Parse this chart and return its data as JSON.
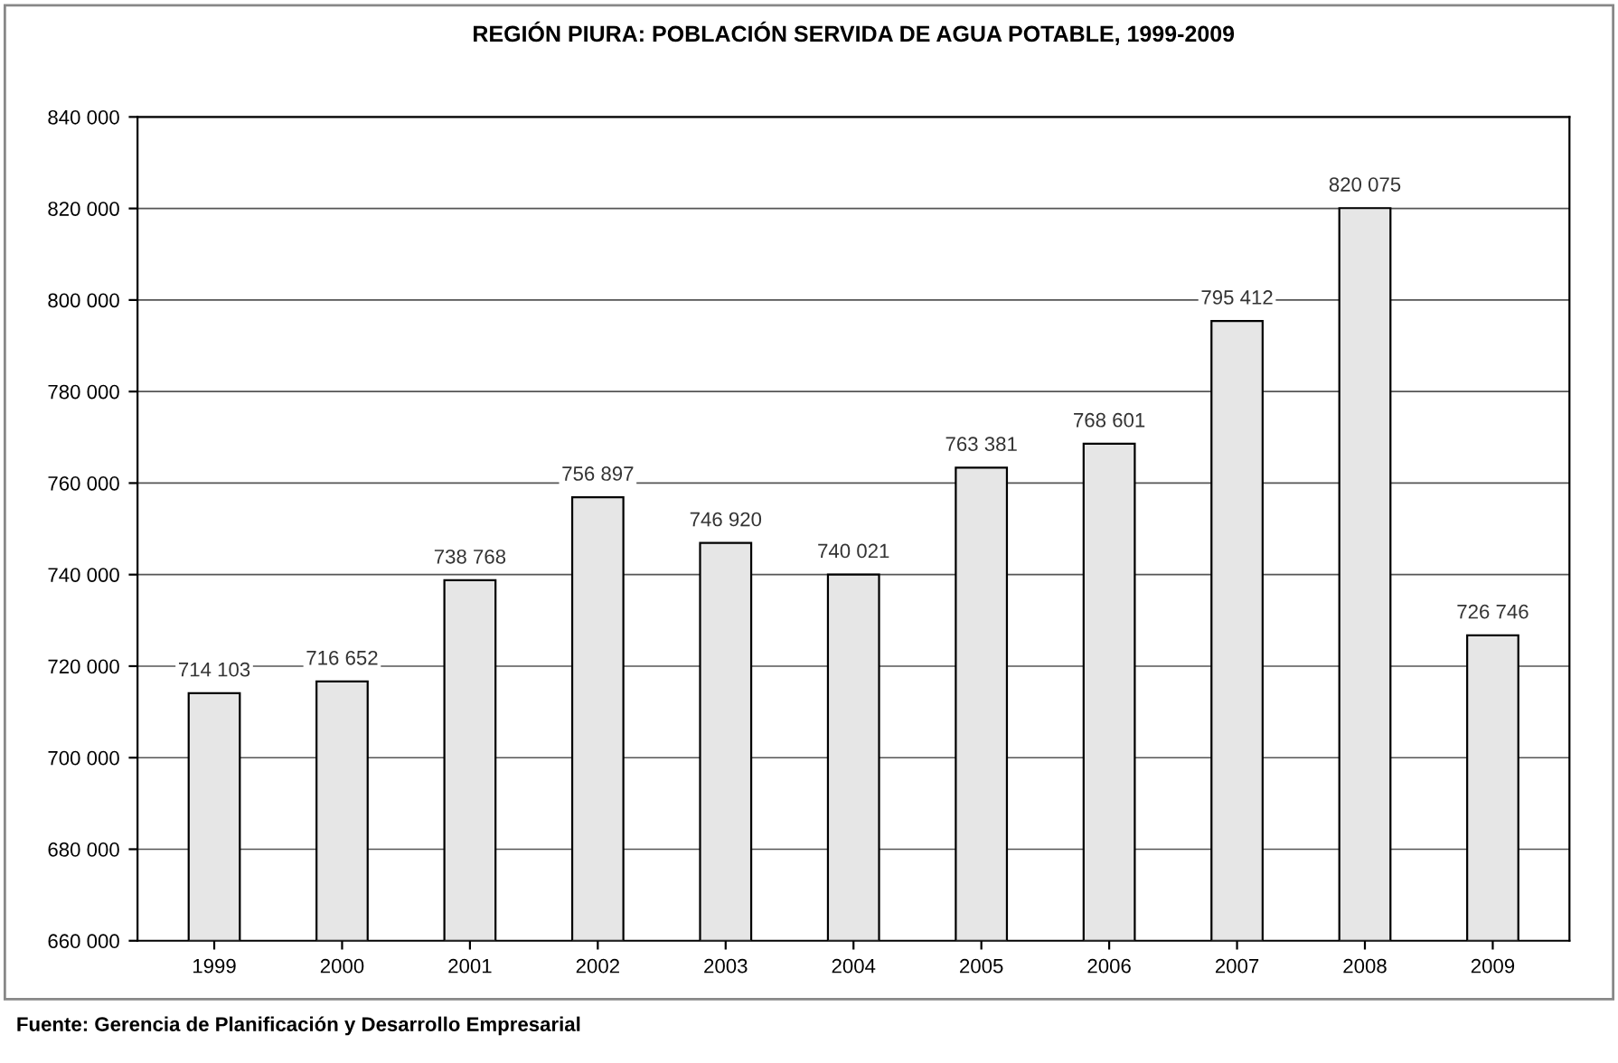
{
  "chart_data": {
    "type": "bar",
    "title": "REGIÓN PIURA: POBLACIÓN SERVIDA DE AGUA POTABLE, 1999-2009",
    "categories": [
      "1999",
      "2000",
      "2001",
      "2002",
      "2003",
      "2004",
      "2005",
      "2006",
      "2007",
      "2008",
      "2009"
    ],
    "values": [
      714103,
      716652,
      738768,
      756897,
      746920,
      740021,
      763381,
      768601,
      795412,
      820075,
      726746
    ],
    "value_labels": [
      "714 103",
      "716 652",
      "738 768",
      "756 897",
      "746 920",
      "740 021",
      "763 381",
      "768 601",
      "795 412",
      "820 075",
      "726 746"
    ],
    "color": "#e6e6e6",
    "ylim": [
      660000,
      840000
    ],
    "yticks": [
      {
        "value": 660000,
        "label": "660 000"
      },
      {
        "value": 680000,
        "label": "680 000"
      },
      {
        "value": 700000,
        "label": "700 000"
      },
      {
        "value": 720000,
        "label": "720 000"
      },
      {
        "value": 740000,
        "label": "740 000"
      },
      {
        "value": 760000,
        "label": "760 000"
      },
      {
        "value": 780000,
        "label": "780 000"
      },
      {
        "value": 800000,
        "label": "800 000"
      },
      {
        "value": 820000,
        "label": "820 000"
      },
      {
        "value": 840000,
        "label": "840 000"
      }
    ],
    "grid": "y",
    "annotations": [
      "Fuente: Gerencia de Planificación y Desarrollo Empresarial"
    ]
  }
}
